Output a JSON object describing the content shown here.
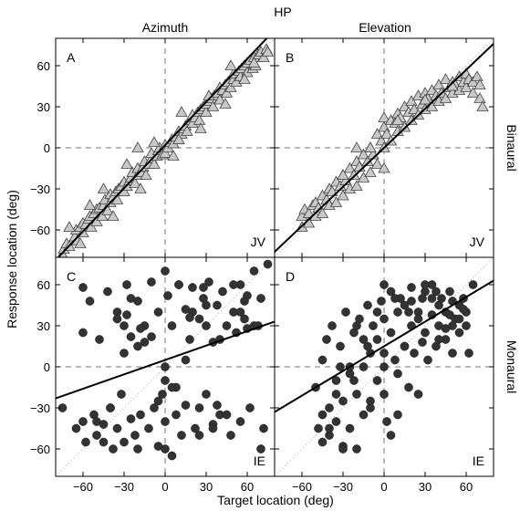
{
  "figure": {
    "title": "HP",
    "xlabel": "Target location (deg)",
    "ylabel": "Response location (deg)",
    "col_titles": [
      "Azimuth",
      "Elevation"
    ],
    "row_titles": [
      "Binaural",
      "Monaural"
    ]
  },
  "chart_data": [
    {
      "type": "scatter",
      "panel_label": "A",
      "subject": "JV",
      "xlim": [
        -80,
        80
      ],
      "ylim": [
        -80,
        80
      ],
      "xticks": [
        -60,
        -30,
        0,
        30,
        60
      ],
      "yticks": [
        -60,
        -30,
        0,
        30,
        60
      ],
      "marker": "triangle",
      "regression": {
        "slope": 1.05,
        "intercept": 2
      },
      "x": [
        -75,
        -74,
        -72,
        -70,
        -66,
        -65,
        -64,
        -62,
        -60,
        -60,
        -58,
        -56,
        -55,
        -54,
        -52,
        -50,
        -50,
        -48,
        -46,
        -45,
        -44,
        -42,
        -40,
        -40,
        -38,
        -36,
        -35,
        -34,
        -32,
        -30,
        -30,
        -28,
        -26,
        -25,
        -24,
        -22,
        -20,
        -20,
        -18,
        -16,
        -15,
        -14,
        -12,
        -10,
        -10,
        -8,
        -6,
        -5,
        -4,
        -2,
        0,
        0,
        2,
        4,
        5,
        6,
        8,
        10,
        10,
        12,
        14,
        15,
        16,
        18,
        20,
        20,
        22,
        24,
        25,
        26,
        28,
        30,
        30,
        32,
        34,
        35,
        36,
        38,
        40,
        40,
        42,
        44,
        45,
        46,
        48,
        50,
        50,
        52,
        54,
        55,
        56,
        58,
        60,
        60,
        62,
        64,
        65,
        66,
        68,
        70,
        72,
        74,
        75,
        -70,
        -55,
        -45,
        -28,
        -8,
        12,
        32,
        48,
        65,
        -62,
        -38,
        -18,
        6,
        26,
        44,
        58
      ],
      "y": [
        -78,
        -74,
        -70,
        -72,
        -65,
        -60,
        -68,
        -58,
        -62,
        -55,
        -56,
        -52,
        -50,
        -58,
        -48,
        -54,
        -45,
        -44,
        -50,
        -42,
        -38,
        -46,
        -40,
        -34,
        -36,
        -32,
        -38,
        -30,
        -28,
        -32,
        -25,
        -28,
        -24,
        -22,
        -18,
        -26,
        -20,
        -15,
        -18,
        -14,
        -10,
        -20,
        -12,
        -8,
        -4,
        -12,
        -6,
        -2,
        0,
        -5,
        2,
        -4,
        0,
        4,
        6,
        3,
        8,
        12,
        6,
        10,
        14,
        16,
        12,
        20,
        18,
        24,
        22,
        26,
        20,
        28,
        30,
        26,
        32,
        34,
        36,
        30,
        38,
        40,
        35,
        44,
        42,
        46,
        40,
        48,
        44,
        50,
        54,
        48,
        56,
        52,
        58,
        60,
        55,
        62,
        64,
        58,
        66,
        60,
        68,
        70,
        66,
        72,
        70,
        -58,
        -42,
        -30,
        -12,
        4,
        26,
        38,
        60,
        62,
        -70,
        -50,
        -30,
        -6,
        14,
        32,
        50
      ],
      "x_extra": [
        -20,
        10
      ],
      "y_extra": [
        0,
        6
      ]
    },
    {
      "type": "scatter",
      "panel_label": "B",
      "subject": "JV",
      "xlim": [
        -80,
        80
      ],
      "ylim": [
        -80,
        80
      ],
      "xticks": [
        -60,
        -30,
        0,
        30,
        60
      ],
      "yticks": [
        -60,
        -30,
        0,
        30,
        60
      ],
      "marker": "triangle",
      "regression": {
        "slope": 0.95,
        "intercept": 0
      },
      "x": [
        -60,
        -60,
        -58,
        -55,
        -55,
        -52,
        -50,
        -50,
        -48,
        -45,
        -45,
        -42,
        -40,
        -40,
        -38,
        -35,
        -35,
        -32,
        -30,
        -30,
        -28,
        -25,
        -25,
        -22,
        -20,
        -20,
        -18,
        -15,
        -15,
        -12,
        -10,
        -10,
        -8,
        -5,
        -5,
        -2,
        0,
        0,
        0,
        0,
        2,
        5,
        5,
        8,
        10,
        10,
        12,
        15,
        15,
        18,
        20,
        20,
        22,
        25,
        25,
        28,
        30,
        30,
        32,
        35,
        35,
        38,
        40,
        40,
        42,
        45,
        45,
        48,
        50,
        50,
        52,
        55,
        55,
        58,
        60,
        60,
        62,
        65,
        65,
        68,
        70,
        70,
        72,
        -30,
        -10,
        10,
        30,
        50,
        -20
      ],
      "y": [
        -50,
        -58,
        -45,
        -48,
        -55,
        -42,
        -40,
        -50,
        -44,
        -35,
        -48,
        -38,
        -30,
        -42,
        -32,
        -25,
        -40,
        -28,
        -20,
        -35,
        -24,
        -15,
        -30,
        -20,
        -10,
        -28,
        -14,
        -5,
        -22,
        -10,
        0,
        -18,
        -5,
        10,
        -12,
        5,
        -15,
        0,
        15,
        22,
        10,
        20,
        5,
        18,
        25,
        12,
        22,
        30,
        15,
        26,
        34,
        20,
        28,
        38,
        24,
        32,
        40,
        28,
        36,
        42,
        30,
        38,
        46,
        34,
        40,
        50,
        36,
        44,
        48,
        40,
        46,
        52,
        42,
        48,
        54,
        44,
        50,
        48,
        40,
        52,
        46,
        36,
        30,
        -20,
        0,
        20,
        35,
        45,
        0
      ],
      "x_extra": [],
      "y_extra": []
    },
    {
      "type": "scatter",
      "panel_label": "C",
      "subject": "IE",
      "xlim": [
        -80,
        80
      ],
      "ylim": [
        -80,
        80
      ],
      "xticks": [
        -60,
        -30,
        0,
        30,
        60
      ],
      "yticks": [
        -60,
        -30,
        0,
        30,
        60
      ],
      "marker": "circle",
      "regression": {
        "slope": 0.35,
        "intercept": 5
      },
      "x": [
        -75,
        -65,
        -60,
        -60,
        -58,
        -55,
        -52,
        -50,
        -48,
        -45,
        -42,
        -40,
        -38,
        -35,
        -35,
        -32,
        -30,
        -30,
        -28,
        -25,
        -25,
        -22,
        -20,
        -20,
        -18,
        -15,
        -12,
        -10,
        -8,
        -5,
        -5,
        -2,
        0,
        0,
        0,
        0,
        2,
        5,
        5,
        8,
        10,
        12,
        15,
        15,
        18,
        20,
        22,
        25,
        25,
        28,
        30,
        30,
        32,
        35,
        35,
        38,
        40,
        42,
        45,
        48,
        50,
        52,
        55,
        55,
        58,
        60,
        62,
        65,
        70,
        72,
        75,
        -60,
        -45,
        -30,
        -15,
        0,
        15,
        30,
        45,
        60,
        -50,
        -35,
        -20,
        -5,
        10,
        25,
        40,
        55,
        70,
        -40,
        -25,
        -10,
        5,
        20,
        35,
        50,
        65,
        -28,
        -18,
        8,
        18,
        28,
        38,
        58,
        68
      ],
      "y": [
        -30,
        -45,
        58,
        -40,
        -55,
        48,
        -35,
        -50,
        20,
        -42,
        55,
        -30,
        -60,
        40,
        -45,
        -20,
        30,
        -55,
        60,
        -38,
        22,
        -50,
        48,
        -60,
        -35,
        18,
        -45,
        62,
        -30,
        40,
        -58,
        -20,
        70,
        -10,
        -40,
        0,
        52,
        -65,
        30,
        -15,
        60,
        -50,
        42,
        -28,
        20,
        58,
        -45,
        35,
        -30,
        50,
        30,
        -20,
        62,
        18,
        -42,
        45,
        -35,
        55,
        30,
        -50,
        40,
        25,
        60,
        -40,
        35,
        28,
        -30,
        70,
        50,
        -45,
        75,
        25,
        -55,
        10,
        30,
        -60,
        5,
        45,
        -35,
        52,
        -40,
        35,
        15,
        -25,
        60,
        -50,
        20,
        40,
        -60,
        -30,
        50,
        22,
        -15,
        40,
        -45,
        60,
        30,
        38,
        28,
        -35,
        36,
        58,
        -28,
        48,
        30
      ],
      "x_extra": [],
      "y_extra": []
    },
    {
      "type": "scatter",
      "panel_label": "D",
      "subject": "IE",
      "xlim": [
        -80,
        80
      ],
      "ylim": [
        -80,
        80
      ],
      "xticks": [
        -60,
        -30,
        0,
        30,
        60
      ],
      "yticks": [
        -60,
        -30,
        0,
        30,
        60
      ],
      "marker": "circle",
      "regression": {
        "slope": 0.6,
        "intercept": 15
      },
      "x": [
        -50,
        -48,
        -45,
        -45,
        -42,
        -40,
        -40,
        -38,
        -35,
        -35,
        -32,
        -30,
        -30,
        -28,
        -25,
        -25,
        -22,
        -20,
        -20,
        -18,
        -15,
        -15,
        -12,
        -10,
        -10,
        -8,
        -5,
        -5,
        -2,
        0,
        0,
        0,
        0,
        2,
        5,
        5,
        8,
        10,
        10,
        12,
        15,
        15,
        18,
        20,
        20,
        22,
        25,
        25,
        28,
        30,
        30,
        32,
        35,
        35,
        38,
        40,
        40,
        42,
        45,
        45,
        48,
        50,
        50,
        52,
        55,
        55,
        58,
        60,
        60,
        62,
        65,
        -45,
        -35,
        -25,
        -15,
        -5,
        5,
        15,
        25,
        35,
        45,
        55,
        -40,
        -30,
        -20,
        -10,
        0,
        10,
        20,
        30,
        40,
        50,
        -32,
        -22,
        -12,
        8,
        18,
        28,
        38,
        48,
        58
      ],
      "y": [
        -15,
        -45,
        5,
        -55,
        20,
        -30,
        -50,
        30,
        -10,
        -40,
        15,
        -25,
        -58,
        40,
        -5,
        -45,
        25,
        -20,
        -60,
        35,
        0,
        -35,
        45,
        10,
        -30,
        30,
        20,
        -10,
        48,
        -20,
        0,
        35,
        60,
        -40,
        25,
        55,
        5,
        40,
        -5,
        50,
        15,
        45,
        -15,
        30,
        58,
        10,
        40,
        -20,
        50,
        25,
        55,
        5,
        38,
        60,
        15,
        45,
        30,
        50,
        20,
        40,
        55,
        10,
        48,
        35,
        45,
        25,
        50,
        40,
        30,
        10,
        60,
        -35,
        -20,
        0,
        20,
        40,
        -50,
        15,
        35,
        50,
        28,
        35,
        -45,
        -60,
        30,
        -25,
        10,
        -35,
        48,
        60,
        20,
        30,
        0,
        -10,
        15,
        50,
        40,
        18,
        55,
        38,
        42
      ],
      "x_extra": [],
      "y_extra": []
    }
  ]
}
